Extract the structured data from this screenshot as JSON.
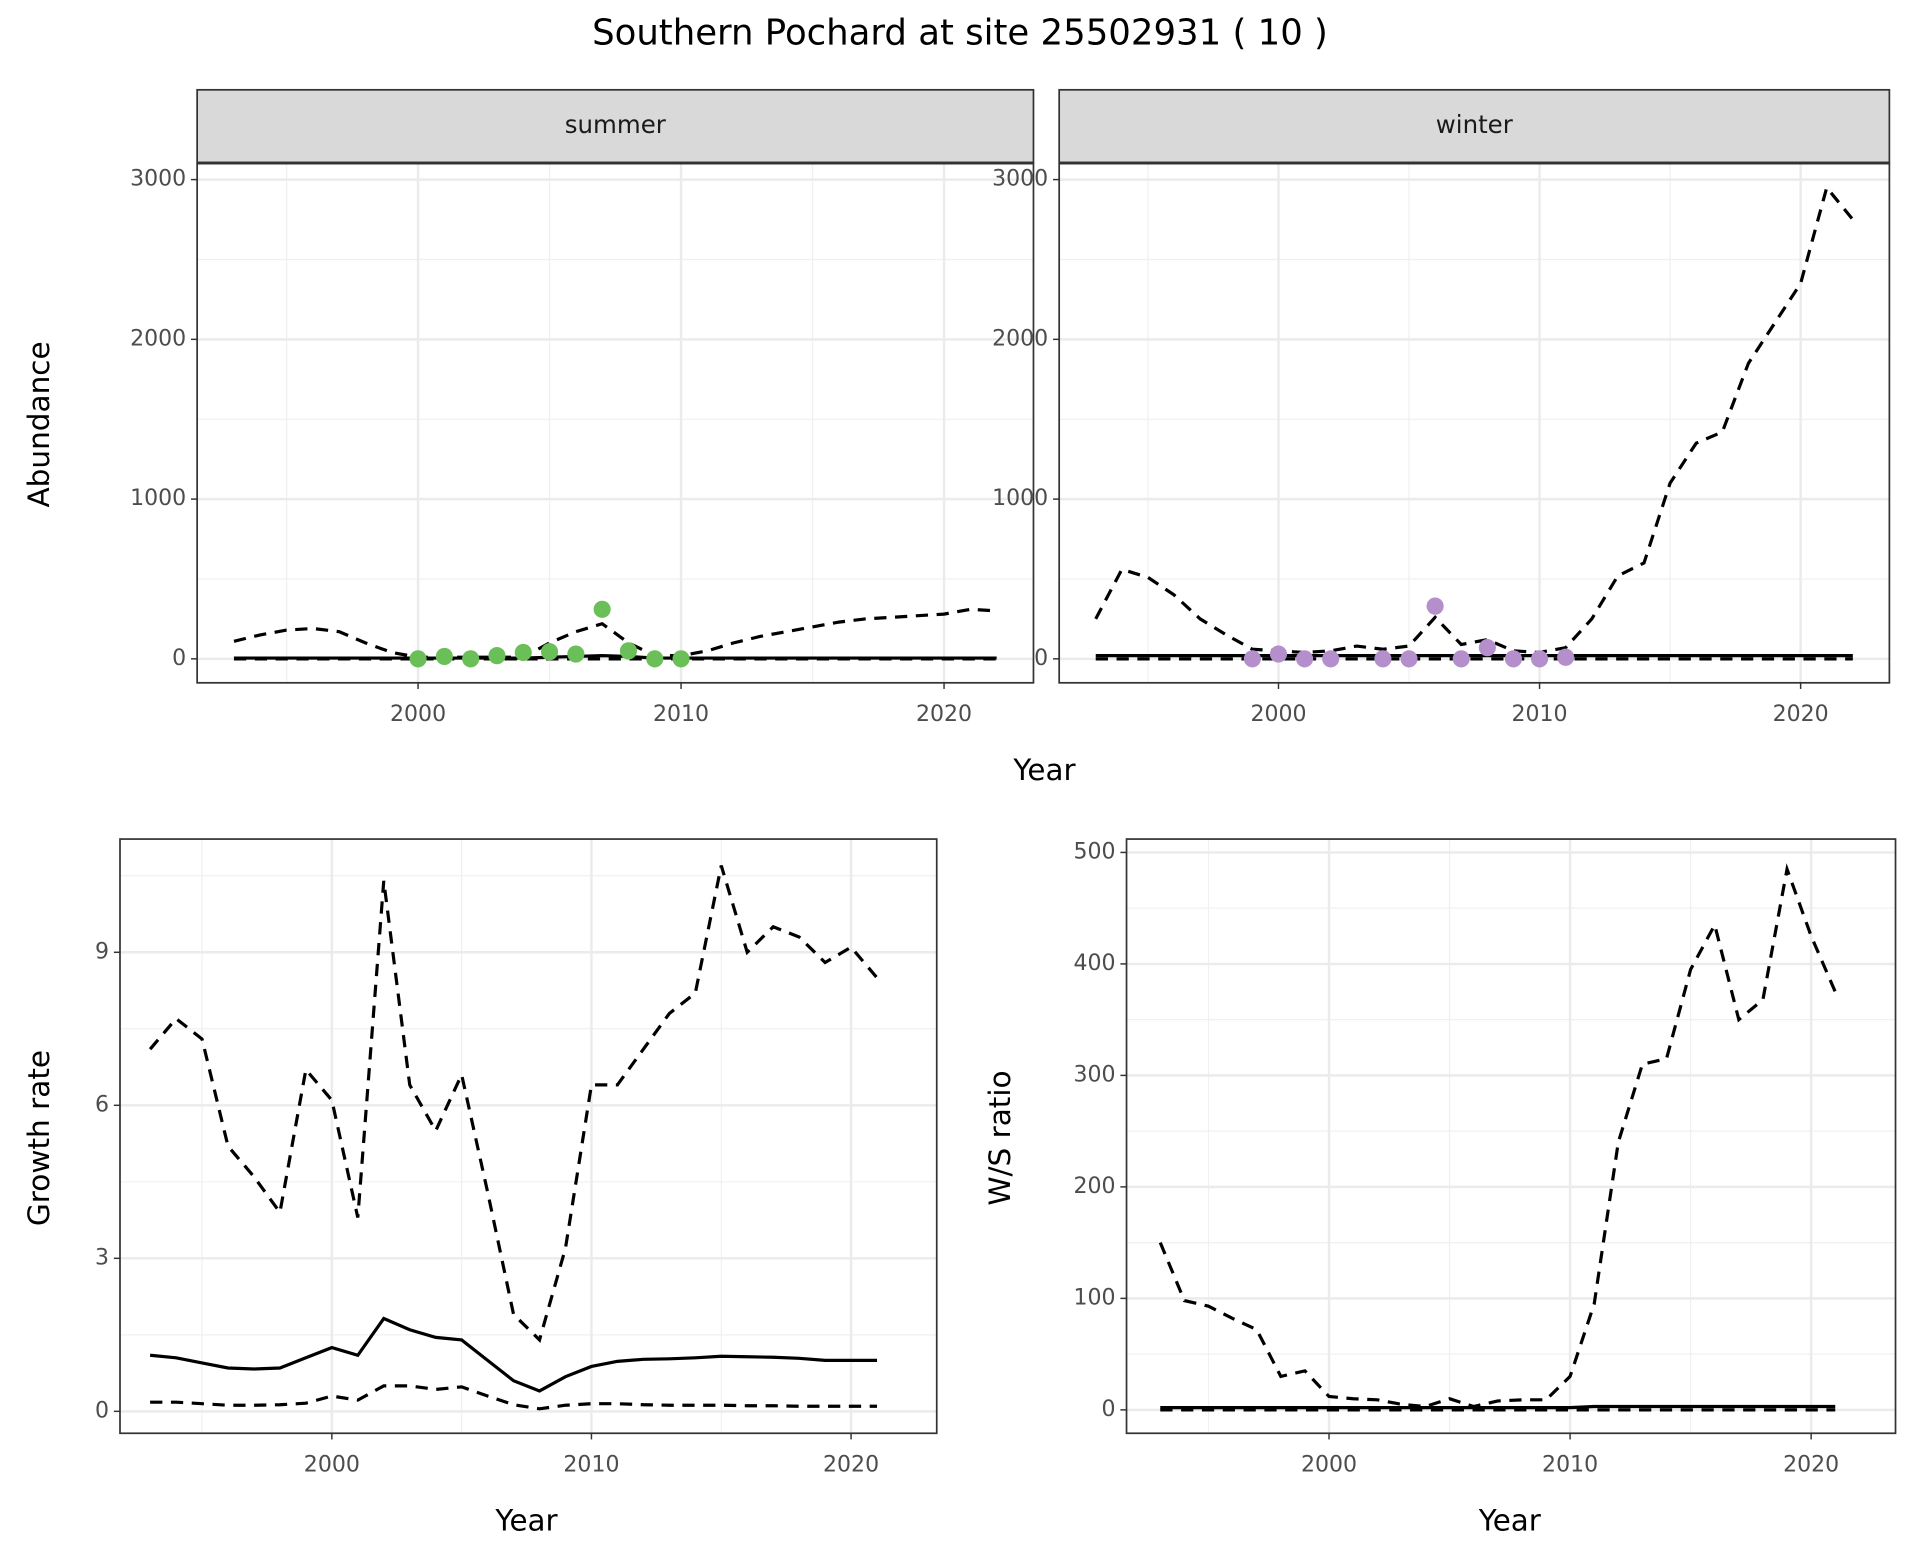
{
  "title": "Southern Pochard at site 25502931 ( 10 )",
  "top_xlabel": "Year",
  "chart_data": [
    {
      "type": "line",
      "strip": "summer",
      "ylabel": "Abundance",
      "x": [
        1993,
        1994,
        1995,
        1996,
        1997,
        1998,
        1999,
        2000,
        2001,
        2002,
        2003,
        2004,
        2005,
        2006,
        2007,
        2008,
        2009,
        2010,
        2011,
        2012,
        2013,
        2014,
        2015,
        2016,
        2017,
        2018,
        2019,
        2020,
        2021,
        2022
      ],
      "xlim": [
        1991.6,
        2023.4
      ],
      "ylim": [
        -150,
        3100
      ],
      "xticks": [
        2000,
        2010,
        2020
      ],
      "yticks": [
        0,
        1000,
        2000,
        3000
      ],
      "grid": true,
      "series": [
        {
          "linestyle": "dashed",
          "color": "#000000",
          "values": [
            110,
            150,
            180,
            190,
            170,
            100,
            40,
            10,
            10,
            10,
            10,
            10,
            100,
            170,
            220,
            100,
            20,
            20,
            50,
            100,
            140,
            170,
            200,
            230,
            250,
            260,
            270,
            280,
            310,
            300
          ]
        },
        {
          "linestyle": "solid",
          "color": "#000000",
          "values": [
            5,
            5,
            5,
            5,
            5,
            5,
            5,
            5,
            5,
            5,
            5,
            5,
            10,
            15,
            20,
            15,
            5,
            5,
            5,
            5,
            5,
            5,
            5,
            5,
            5,
            5,
            5,
            5,
            5,
            5
          ]
        },
        {
          "linestyle": "dashed",
          "color": "#000000",
          "values": [
            0,
            0,
            0,
            0,
            0,
            0,
            0,
            0,
            0,
            0,
            0,
            0,
            0,
            0,
            0,
            0,
            0,
            0,
            0,
            0,
            0,
            0,
            0,
            0,
            0,
            0,
            0,
            0,
            0,
            0
          ]
        },
        {
          "mark": "point",
          "color": "#6bbf59",
          "x": [
            2000,
            2001,
            2002,
            2003,
            2004,
            2005,
            2006,
            2007,
            2008,
            2009,
            2010
          ],
          "values": [
            0,
            15,
            0,
            20,
            40,
            45,
            30,
            310,
            50,
            0,
            0
          ]
        }
      ]
    },
    {
      "type": "line",
      "strip": "winter",
      "x": [
        1993,
        1994,
        1995,
        1996,
        1997,
        1998,
        1999,
        2000,
        2001,
        2002,
        2003,
        2004,
        2005,
        2006,
        2007,
        2008,
        2009,
        2010,
        2011,
        2012,
        2013,
        2014,
        2015,
        2016,
        2017,
        2018,
        2019,
        2020,
        2021,
        2022
      ],
      "xlim": [
        1991.6,
        2023.4
      ],
      "ylim": [
        -150,
        3100
      ],
      "xticks": [
        2000,
        2010,
        2020
      ],
      "yticks": [
        0,
        1000,
        2000,
        3000
      ],
      "grid": true,
      "series": [
        {
          "linestyle": "dashed",
          "color": "#000000",
          "values": [
            250,
            560,
            510,
            400,
            250,
            150,
            60,
            50,
            40,
            50,
            80,
            60,
            80,
            260,
            90,
            120,
            50,
            40,
            70,
            250,
            520,
            600,
            1100,
            1350,
            1420,
            1850,
            2100,
            2350,
            2950,
            2750
          ]
        },
        {
          "linestyle": "solid",
          "color": "#000000",
          "values": [
            20,
            20,
            20,
            20,
            20,
            20,
            20,
            20,
            20,
            20,
            20,
            20,
            20,
            20,
            20,
            20,
            20,
            20,
            20,
            20,
            20,
            20,
            20,
            20,
            20,
            20,
            20,
            20,
            20,
            20
          ]
        },
        {
          "linestyle": "dashed",
          "color": "#000000",
          "values": [
            0,
            0,
            0,
            0,
            0,
            0,
            0,
            0,
            0,
            0,
            0,
            0,
            0,
            0,
            0,
            0,
            0,
            0,
            0,
            0,
            0,
            0,
            0,
            0,
            0,
            0,
            0,
            0,
            0,
            0
          ]
        },
        {
          "mark": "point",
          "color": "#b48fcc",
          "x": [
            1999,
            2000,
            2001,
            2002,
            2004,
            2005,
            2006,
            2007,
            2008,
            2009,
            2010,
            2011
          ],
          "values": [
            0,
            30,
            0,
            0,
            0,
            0,
            330,
            0,
            70,
            0,
            0,
            10
          ]
        }
      ]
    },
    {
      "type": "line",
      "xlabel": "Year",
      "ylabel": "Growth rate",
      "x": [
        1993,
        1994,
        1995,
        1996,
        1997,
        1998,
        1999,
        2000,
        2001,
        2002,
        2003,
        2004,
        2005,
        2006,
        2007,
        2008,
        2009,
        2010,
        2011,
        2012,
        2013,
        2014,
        2015,
        2016,
        2017,
        2018,
        2019,
        2020,
        2021
      ],
      "xlim": [
        1991.84,
        2023.3
      ],
      "ylim": [
        -0.43,
        11.22
      ],
      "xticks": [
        2000,
        2010,
        2020
      ],
      "yticks": [
        0,
        3,
        6,
        9
      ],
      "grid": true,
      "series": [
        {
          "linestyle": "dashed",
          "color": "#000000",
          "values": [
            7.1,
            7.7,
            7.3,
            5.2,
            4.6,
            3.9,
            6.7,
            6.1,
            3.8,
            10.4,
            6.4,
            5.5,
            6.6,
            4.3,
            1.9,
            1.4,
            3.2,
            6.4,
            6.4,
            7.1,
            7.8,
            8.2,
            10.7,
            9.0,
            9.5,
            9.3,
            8.8,
            9.1,
            8.5
          ]
        },
        {
          "linestyle": "solid",
          "color": "#000000",
          "values": [
            1.1,
            1.05,
            0.95,
            0.85,
            0.83,
            0.85,
            1.05,
            1.25,
            1.1,
            1.82,
            1.6,
            1.45,
            1.4,
            1.0,
            0.6,
            0.4,
            0.68,
            0.88,
            0.98,
            1.02,
            1.03,
            1.05,
            1.08,
            1.07,
            1.06,
            1.04,
            1.0,
            1.0,
            1.0
          ]
        },
        {
          "linestyle": "dashed",
          "color": "#000000",
          "values": [
            0.18,
            0.18,
            0.15,
            0.12,
            0.12,
            0.13,
            0.16,
            0.3,
            0.22,
            0.5,
            0.5,
            0.43,
            0.48,
            0.3,
            0.13,
            0.05,
            0.12,
            0.15,
            0.15,
            0.13,
            0.12,
            0.12,
            0.12,
            0.11,
            0.11,
            0.1,
            0.1,
            0.1,
            0.1
          ]
        }
      ]
    },
    {
      "type": "line",
      "xlabel": "Year",
      "ylabel": "W/S ratio",
      "x": [
        1993,
        1994,
        1995,
        1996,
        1997,
        1998,
        1999,
        2000,
        2001,
        2002,
        2003,
        2004,
        2005,
        2006,
        2007,
        2008,
        2009,
        2010,
        2011,
        2012,
        2013,
        2014,
        2015,
        2016,
        2017,
        2018,
        2019,
        2020,
        2021
      ],
      "xlim": [
        1991.6,
        2023.5
      ],
      "ylim": [
        -21,
        512
      ],
      "xticks": [
        2000,
        2010,
        2020
      ],
      "yticks": [
        0,
        100,
        200,
        300,
        400,
        500
      ],
      "grid": true,
      "series": [
        {
          "linestyle": "dashed",
          "color": "#000000",
          "values": [
            150,
            98,
            93,
            82,
            72,
            30,
            35,
            12,
            10,
            9,
            5,
            3,
            10,
            3,
            8,
            9,
            9,
            30,
            95,
            240,
            310,
            315,
            395,
            435,
            350,
            368,
            485,
            425,
            375
          ]
        },
        {
          "linestyle": "solid",
          "color": "#000000",
          "values": [
            2,
            2,
            2,
            2,
            2,
            2,
            2,
            2,
            2,
            2,
            2,
            2,
            2,
            2,
            2,
            2,
            2,
            2,
            3,
            3,
            3,
            3,
            3,
            3,
            3,
            3,
            3,
            3,
            3
          ]
        },
        {
          "linestyle": "dashed",
          "color": "#000000",
          "values": [
            0,
            0,
            0,
            0,
            0,
            0,
            0,
            0,
            0,
            0,
            0,
            0,
            0,
            0,
            0,
            0,
            0,
            0,
            0,
            0,
            0,
            0,
            0,
            0,
            0,
            0,
            0,
            0,
            0
          ]
        }
      ]
    }
  ]
}
